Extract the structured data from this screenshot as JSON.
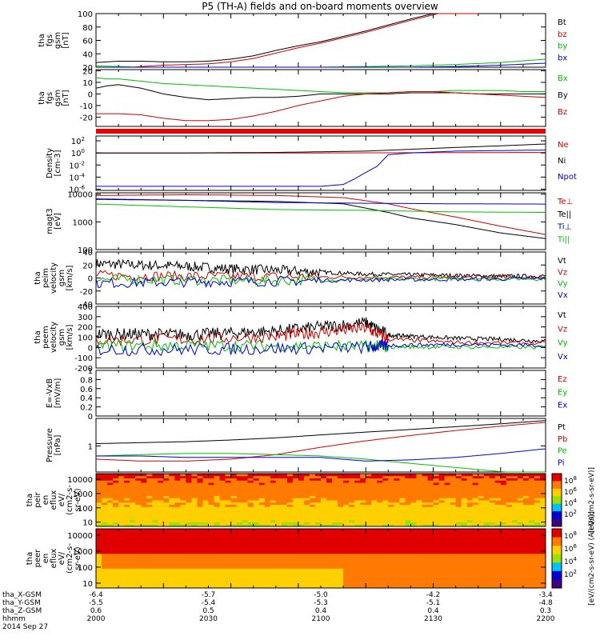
{
  "title": "P5 (TH-A) fields and on-board moments overview",
  "chart_data": [
    {
      "type": "line",
      "ylabel": [
        "tha",
        "fgs",
        "gsm",
        "[nT]"
      ],
      "ylim": [
        20,
        100
      ],
      "yticks": [
        20,
        40,
        60,
        80,
        100
      ],
      "log": false,
      "legend": [
        {
          "name": "Bt",
          "color": "#000000"
        },
        {
          "name": "bz",
          "color": "#d00000"
        },
        {
          "name": "by",
          "color": "#00c000"
        },
        {
          "name": "bx",
          "color": "#0000d0"
        }
      ],
      "series": [
        {
          "name": "Bt",
          "color": "#000000",
          "x": [
            2000,
            2010,
            2020,
            2030,
            2040,
            2050,
            2060,
            2070,
            2080,
            2090,
            2100,
            2110,
            2120,
            2130,
            2140,
            2150,
            2160,
            2170
          ],
          "y": [
            27,
            29,
            29,
            28,
            28,
            29,
            32,
            37,
            45,
            52,
            58,
            66,
            74,
            83,
            92,
            100,
            108,
            116
          ]
        },
        {
          "name": "bz",
          "color": "#d00000",
          "x": [
            2000,
            2010,
            2020,
            2030,
            2040,
            2050,
            2060,
            2070,
            2080,
            2090,
            2100,
            2110,
            2120,
            2130,
            2140,
            2150,
            2160,
            2170
          ],
          "y": [
            15,
            18,
            21,
            23,
            24,
            25,
            28,
            33,
            41,
            49,
            56,
            64,
            72,
            81,
            90,
            98,
            107,
            115
          ]
        },
        {
          "name": "by",
          "color": "#00c000",
          "x": [
            2000,
            2020,
            2040,
            2060,
            2080,
            2100,
            2120,
            2140,
            2160,
            2180,
            2200
          ],
          "y": [
            22,
            20,
            18,
            18,
            19,
            20,
            21,
            22,
            24,
            27,
            32
          ]
        },
        {
          "name": "bx",
          "color": "#0000d0",
          "x": [
            2000,
            2020,
            2040,
            2060,
            2080,
            2100,
            2120,
            2140,
            2160,
            2180,
            2200
          ],
          "y": [
            16,
            16,
            17,
            17,
            18,
            19,
            19,
            20,
            21,
            23,
            26
          ]
        }
      ]
    },
    {
      "type": "line",
      "ylabel": [
        "tha",
        "fgs",
        "gsm",
        "[nT]"
      ],
      "ylim": [
        -28,
        21
      ],
      "yticks": [
        -20,
        -10,
        0,
        10,
        20
      ],
      "log": false,
      "legend": [
        {
          "name": "Bx",
          "color": "#00c000"
        },
        {
          "name": "By",
          "color": "#000000"
        },
        {
          "name": "Bz",
          "color": "#d00000"
        }
      ],
      "series": [
        {
          "name": "Bx",
          "color": "#00c000",
          "x": [
            2000,
            2005,
            2010,
            2020,
            2030,
            2040,
            2050,
            2060,
            2070,
            2080,
            2090,
            2100,
            2110,
            2120,
            2130,
            2140,
            2150,
            2160,
            2170,
            2180,
            2190,
            2200
          ],
          "y": [
            14,
            13,
            13,
            11,
            9,
            8,
            7,
            6,
            5,
            4,
            3,
            2,
            1,
            1,
            1,
            2,
            2,
            3,
            3,
            3,
            2,
            2
          ]
        },
        {
          "name": "By",
          "color": "#000000",
          "x": [
            2000,
            2005,
            2010,
            2020,
            2030,
            2040,
            2050,
            2060,
            2070,
            2080,
            2090,
            2100,
            2110,
            2120,
            2130,
            2140,
            2150,
            2160,
            2170,
            2180,
            2190,
            2200
          ],
          "y": [
            5,
            7,
            8,
            5,
            0,
            -3,
            -5,
            -4,
            -3,
            -3,
            -2,
            0,
            0,
            0,
            0,
            1,
            1,
            1,
            0,
            0,
            0,
            0
          ]
        },
        {
          "name": "Bz",
          "color": "#d00000",
          "x": [
            2000,
            2010,
            2020,
            2030,
            2040,
            2050,
            2060,
            2070,
            2080,
            2090,
            2100,
            2110,
            2120,
            2130,
            2140,
            2150,
            2160,
            2170,
            2180,
            2190,
            2200
          ],
          "y": [
            -17,
            -17,
            -18,
            -21,
            -23,
            -23,
            -22,
            -19,
            -15,
            -10,
            -6,
            -2,
            0,
            1,
            2,
            2,
            1,
            0,
            -1,
            -2,
            -3
          ]
        }
      ]
    },
    {
      "type": "line",
      "ylabel": [
        "Density",
        "[cm-3]"
      ],
      "log": true,
      "ylim_log": [
        -6.2,
        2.8
      ],
      "ytick_exponents": [
        -6,
        -4,
        -2,
        0,
        2
      ],
      "legend": [
        {
          "name": "Ne",
          "color": "#d00000"
        },
        {
          "name": "Ni",
          "color": "#000000"
        },
        {
          "name": "Npot",
          "color": "#0000d0"
        }
      ],
      "series": [
        {
          "name": "Ne",
          "color": "#d00000",
          "x": [
            2000,
            2100,
            2200
          ],
          "y": [
            1.0,
            1.0,
            1.2
          ]
        },
        {
          "name": "Ni",
          "color": "#000000",
          "x": [
            2000,
            2040,
            2080,
            2120,
            2140,
            2160,
            2180,
            2200
          ],
          "y": [
            1.0,
            1.0,
            1.2,
            2,
            4,
            8,
            15,
            30
          ]
        },
        {
          "name": "Npot",
          "color": "#0000d0",
          "x": [
            2000,
            2060,
            2100,
            2110,
            2115,
            2120,
            2125,
            2130,
            2140,
            2160,
            2200
          ],
          "y": [
            3e-06,
            3e-06,
            3e-06,
            6e-06,
            5e-05,
            0.0006,
            0.006,
            0.5,
            1,
            2,
            3
          ]
        }
      ]
    },
    {
      "type": "line",
      "ylabel": [
        "magt3",
        "[eV]"
      ],
      "log": true,
      "ylim_log": [
        2.0,
        4.05
      ],
      "yticks": [
        100,
        1000,
        10000
      ],
      "legend": [
        {
          "name": "Te⊥",
          "color": "#d00000"
        },
        {
          "name": "Te||",
          "color": "#000000"
        },
        {
          "name": "Ti⊥",
          "color": "#0000d0"
        },
        {
          "name": "Ti||",
          "color": "#00c000"
        }
      ],
      "series": [
        {
          "name": "Te⊥",
          "color": "#d00000",
          "x": [
            2000,
            2040,
            2080,
            2110,
            2130,
            2140,
            2160,
            2180,
            2200
          ],
          "y": [
            9000,
            9500,
            9000,
            7500,
            4500,
            3000,
            1500,
            700,
            350
          ]
        },
        {
          "name": "Te||",
          "color": "#000000",
          "x": [
            2000,
            2040,
            2080,
            2110,
            2130,
            2140,
            2160,
            2180,
            2200
          ],
          "y": [
            6500,
            6000,
            5500,
            4500,
            2200,
            1400,
            800,
            400,
            250
          ]
        },
        {
          "name": "Ti⊥",
          "color": "#0000d0",
          "x": [
            2000,
            2040,
            2080,
            2120,
            2160,
            2200
          ],
          "y": [
            6800,
            6000,
            5000,
            4700,
            4500,
            4400
          ]
        },
        {
          "name": "Ti||",
          "color": "#00c000",
          "x": [
            2000,
            2040,
            2080,
            2120,
            2160,
            2200
          ],
          "y": [
            4400,
            3500,
            2800,
            2600,
            2300,
            2200
          ]
        }
      ]
    },
    {
      "type": "line",
      "ylabel": [
        "tha",
        "peim",
        "velocity",
        "gsm",
        "[km/s]"
      ],
      "ylim": [
        -40,
        40
      ],
      "yticks": [
        -40,
        -20,
        0,
        20,
        40
      ],
      "log": false,
      "legend": [
        {
          "name": "Vt",
          "color": "#000000"
        },
        {
          "name": "Vz",
          "color": "#d00000"
        },
        {
          "name": "Vy",
          "color": "#00c000"
        },
        {
          "name": "Vx",
          "color": "#0000d0"
        }
      ],
      "series": [
        {
          "name": "Vt",
          "color": "#000000",
          "x": [
            2000,
            2020,
            2040,
            2060,
            2080,
            2100,
            2120,
            2140,
            2160,
            2180,
            2200
          ],
          "y": [
            22,
            20,
            18,
            14,
            12,
            9,
            6,
            5,
            4,
            3,
            3
          ]
        },
        {
          "name": "Vz",
          "color": "#d00000",
          "x": [
            2000,
            2040,
            2080,
            2120,
            2160,
            2200
          ],
          "y": [
            4,
            3,
            2,
            1,
            1,
            1
          ]
        },
        {
          "name": "Vy",
          "color": "#00c000",
          "x": [
            2000,
            2040,
            2080,
            2120,
            2160,
            2200
          ],
          "y": [
            -2,
            -3,
            -4,
            -2,
            -1,
            -1
          ]
        },
        {
          "name": "Vx",
          "color": "#0000d0",
          "x": [
            2000,
            2040,
            2080,
            2120,
            2160,
            2200
          ],
          "y": [
            -8,
            -6,
            -5,
            -3,
            -2,
            -1
          ]
        }
      ]
    },
    {
      "type": "line",
      "ylabel": [
        "tha",
        "peem",
        "velocity",
        "gsm",
        "[km/s]"
      ],
      "ylim": [
        -200,
        400
      ],
      "yticks": [
        -200,
        -100,
        0,
        100,
        200,
        300,
        400
      ],
      "log": false,
      "legend": [
        {
          "name": "Vt",
          "color": "#000000"
        },
        {
          "name": "Vz",
          "color": "#d00000"
        },
        {
          "name": "Vy",
          "color": "#00c000"
        },
        {
          "name": "Vx",
          "color": "#0000d0"
        }
      ],
      "series": [
        {
          "name": "Vt",
          "color": "#000000",
          "x": [
            2000,
            2020,
            2040,
            2060,
            2080,
            2100,
            2120,
            2130,
            2140,
            2160,
            2180,
            2200
          ],
          "y": [
            130,
            130,
            125,
            140,
            160,
            200,
            240,
            120,
            110,
            90,
            80,
            60
          ]
        },
        {
          "name": "Vz",
          "color": "#d00000",
          "x": [
            2000,
            2040,
            2080,
            2100,
            2120,
            2130,
            2160,
            2200
          ],
          "y": [
            70,
            80,
            110,
            150,
            190,
            80,
            50,
            40
          ]
        },
        {
          "name": "Vy",
          "color": "#00c000",
          "x": [
            2000,
            2040,
            2080,
            2120,
            2130,
            2160,
            2200
          ],
          "y": [
            20,
            20,
            15,
            10,
            5,
            5,
            0
          ]
        },
        {
          "name": "Vx",
          "color": "#0000d0",
          "x": [
            2000,
            2040,
            2080,
            2120,
            2130,
            2160,
            2200
          ],
          "y": [
            -20,
            -20,
            -10,
            0,
            20,
            30,
            20
          ]
        }
      ]
    },
    {
      "type": "line",
      "ylabel": [
        "E=-VxB",
        "[mV/m]"
      ],
      "ylim": [
        0.0,
        1.0
      ],
      "yticks": [
        0.0,
        0.2,
        0.4,
        0.6,
        0.8,
        1.0
      ],
      "log": false,
      "legend": [
        {
          "name": "Ez",
          "color": "#d00000"
        },
        {
          "name": "Ey",
          "color": "#00c000"
        },
        {
          "name": "Ex",
          "color": "#0000d0"
        }
      ],
      "series": []
    },
    {
      "type": "line",
      "ylabel": [
        "Pressure",
        "[nPa]"
      ],
      "log": true,
      "ylim_log": [
        -0.9,
        0.95
      ],
      "yticks": [
        0.1,
        1.0
      ],
      "legend": [
        {
          "name": "Pt",
          "color": "#000000"
        },
        {
          "name": "Pb",
          "color": "#d00000"
        },
        {
          "name": "Pe",
          "color": "#00c000"
        },
        {
          "name": "Pi",
          "color": "#0000d0"
        }
      ],
      "series": [
        {
          "name": "Pt",
          "color": "#000000",
          "x": [
            2000,
            2020,
            2040,
            2060,
            2080,
            2100,
            2120,
            2140,
            2160,
            2180,
            2200
          ],
          "y": [
            1.2,
            1.3,
            1.4,
            1.6,
            1.9,
            2.4,
            3.0,
            3.7,
            4.6,
            5.8,
            7.5
          ]
        },
        {
          "name": "Pb",
          "color": "#d00000",
          "x": [
            2000,
            2020,
            2040,
            2060,
            2080,
            2100,
            2120,
            2140,
            2160,
            2180,
            2200
          ],
          "y": [
            0.35,
            0.3,
            0.3,
            0.35,
            0.5,
            0.9,
            1.5,
            2.3,
            3.4,
            4.8,
            6.5
          ]
        },
        {
          "name": "Pe",
          "color": "#00c000",
          "x": [
            2000,
            2020,
            2040,
            2060,
            2080,
            2100,
            2120,
            2140,
            2160,
            2180,
            2200
          ],
          "y": [
            0.45,
            0.5,
            0.55,
            0.55,
            0.5,
            0.45,
            0.35,
            0.25,
            0.18,
            0.13,
            0.1
          ]
        },
        {
          "name": "Pi",
          "color": "#0000d0",
          "x": [
            2000,
            2020,
            2040,
            2060,
            2080,
            2100,
            2120,
            2140,
            2160,
            2180,
            2200
          ],
          "y": [
            0.45,
            0.45,
            0.4,
            0.4,
            0.4,
            0.4,
            0.3,
            0.33,
            0.4,
            0.55,
            0.8
          ]
        }
      ]
    },
    {
      "type": "heatmap",
      "ylabel": [
        "tha",
        "peir",
        "en",
        "eflux",
        "eV/",
        "(cm2-s-",
        "sr-eV)"
      ],
      "ylim": [
        5,
        25000
      ],
      "yticks": [
        10,
        100,
        1000,
        10000
      ],
      "colorbar": {
        "labels": [
          "10^8",
          "10^6",
          "10^4",
          "10^2"
        ],
        "title": "[eV/(cm2-s-sr-eV)]"
      }
    },
    {
      "type": "heatmap",
      "ylabel": [
        "tha",
        "peer",
        "en",
        "eflux",
        "eV/",
        "(cm2-s-",
        "sr-eV)"
      ],
      "ylim": [
        5,
        25000
      ],
      "yticks": [
        10,
        100,
        1000,
        10000
      ],
      "colorbar": {
        "labels": [
          "10^8",
          "10^6",
          "10^4",
          "10^2"
        ],
        "title": "[eV/(cm2-s-sr-eV) (All Qs)]"
      }
    }
  ],
  "axis": {
    "rows": [
      {
        "label": "tha_X-GSM",
        "values": [
          "-6.4",
          "-5.7",
          "-5.0",
          "-4.2",
          "-3.4"
        ]
      },
      {
        "label": "tha_Y-GSM",
        "values": [
          "-5.5",
          "-5.4",
          "-5.3",
          "-5.1",
          "-4.8"
        ]
      },
      {
        "label": "tha_Z-GSM",
        "values": [
          "0.6",
          "0.5",
          "0.4",
          "0.4",
          "0.3"
        ]
      },
      {
        "label": "hhmm",
        "values": [
          "2000",
          "2030",
          "2100",
          "2130",
          "2200"
        ]
      }
    ],
    "date": "2014 Sep 27"
  },
  "colors": {
    "black": "#000000",
    "red": "#d00000",
    "green": "#00c000",
    "blue": "#0000d0"
  }
}
